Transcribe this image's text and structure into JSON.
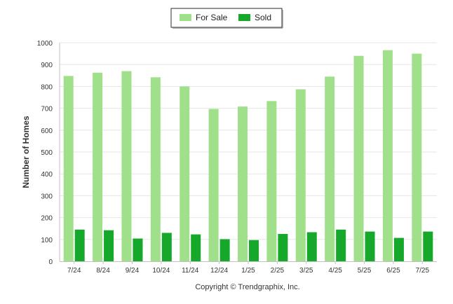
{
  "chart_data": {
    "type": "bar",
    "title": "",
    "xlabel": "",
    "ylabel": "Number of Homes",
    "ylim": [
      0,
      1000
    ],
    "yticks": [
      0,
      100,
      200,
      300,
      400,
      500,
      600,
      700,
      800,
      900,
      1000
    ],
    "grid": true,
    "legend_position": "top-center",
    "categories": [
      "7/24",
      "8/24",
      "9/24",
      "10/24",
      "11/24",
      "12/24",
      "1/25",
      "2/25",
      "3/25",
      "4/25",
      "5/25",
      "6/25",
      "7/25"
    ],
    "series": [
      {
        "name": "For Sale",
        "color": "#a1e08a",
        "values": [
          848,
          863,
          870,
          842,
          800,
          697,
          708,
          733,
          787,
          845,
          940,
          966,
          950
        ]
      },
      {
        "name": "Sold",
        "color": "#15a82b",
        "values": [
          145,
          142,
          104,
          130,
          123,
          101,
          97,
          125,
          133,
          145,
          136,
          107,
          136
        ]
      }
    ]
  },
  "credit": "Copyright © Trendgraphix, Inc."
}
